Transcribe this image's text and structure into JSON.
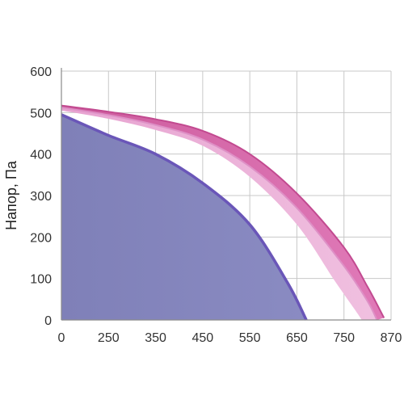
{
  "chart_data": {
    "type": "area",
    "xlabel": "",
    "ylabel": "Напор, Па",
    "x_tick_labels": [
      "0",
      "250",
      "350",
      "450",
      "550",
      "650",
      "750",
      "870"
    ],
    "x_tick_positions": [
      0,
      1,
      2,
      3,
      4,
      5,
      6,
      7
    ],
    "y_ticks": [
      0,
      100,
      200,
      300,
      400,
      500,
      600
    ],
    "ylim": [
      0,
      600
    ],
    "grid": true,
    "legend": "none",
    "series": [
      {
        "band": [
          "#cc5a9c",
          "#e07ab8"
        ],
        "edge_color": "#c24a90",
        "upper": [
          [
            0,
            517
          ],
          [
            1,
            502
          ],
          [
            2,
            484
          ],
          [
            3,
            456
          ],
          [
            4,
            400
          ],
          [
            5,
            305
          ],
          [
            6,
            175
          ],
          [
            6.5,
            80
          ],
          [
            6.85,
            5
          ]
        ],
        "lower": [
          [
            0,
            512
          ],
          [
            1,
            494
          ],
          [
            2,
            470
          ],
          [
            3,
            435
          ],
          [
            4,
            370
          ],
          [
            5,
            270
          ],
          [
            6,
            130
          ],
          [
            6.5,
            45
          ],
          [
            6.7,
            0
          ]
        ]
      },
      {
        "band": [
          "#e7a2d0",
          "#f0c0e0"
        ],
        "edge_color": "#de90c6",
        "upper": [
          [
            0,
            512
          ],
          [
            1,
            494
          ],
          [
            2,
            470
          ],
          [
            3,
            435
          ],
          [
            4,
            370
          ],
          [
            5,
            270
          ],
          [
            6,
            130
          ],
          [
            6.5,
            45
          ],
          [
            6.7,
            0
          ]
        ],
        "lower": [
          [
            0,
            505
          ],
          [
            1,
            485
          ],
          [
            2,
            458
          ],
          [
            3,
            420
          ],
          [
            4,
            345
          ],
          [
            5,
            230
          ],
          [
            5.8,
            95
          ],
          [
            6.2,
            30
          ],
          [
            6.38,
            0
          ]
        ]
      },
      {
        "band": [
          "#7f80b8",
          "#8a8bc2"
        ],
        "edge_color": "#6a56b8",
        "upper": [
          [
            0,
            495
          ],
          [
            1,
            445
          ],
          [
            2,
            400
          ],
          [
            3,
            330
          ],
          [
            4,
            230
          ],
          [
            4.8,
            90
          ],
          [
            5.2,
            0
          ]
        ],
        "lower": []
      }
    ]
  }
}
